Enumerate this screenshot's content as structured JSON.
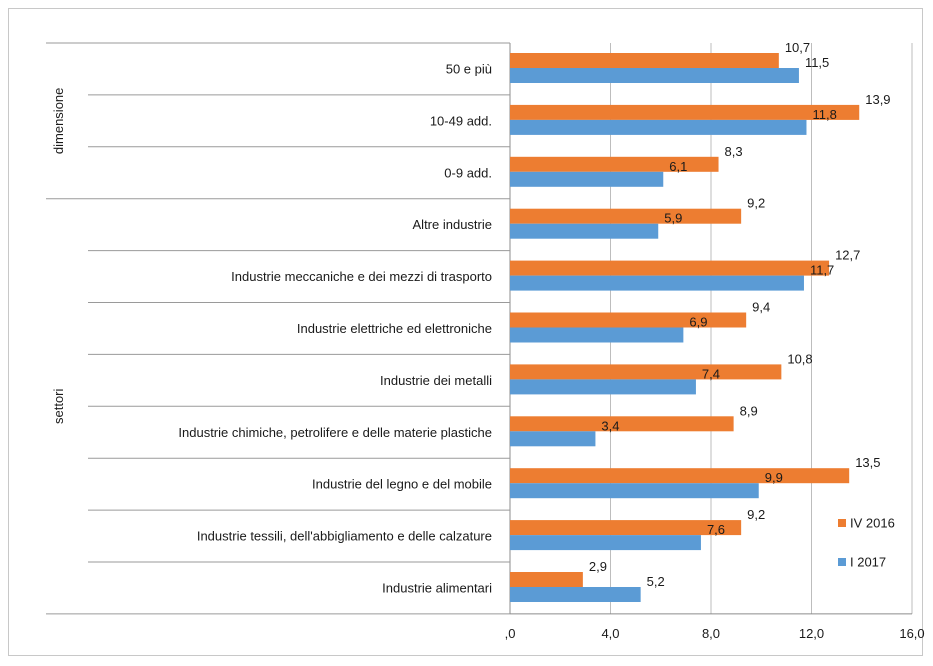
{
  "chart_data": {
    "type": "bar",
    "orientation": "horizontal",
    "groups": [
      {
        "label": "dimensione",
        "categories": [
          "50 e più",
          "10-49 add.",
          "0-9 add."
        ]
      },
      {
        "label": "settori",
        "categories": [
          "Altre industrie",
          "Industrie meccaniche e dei mezzi di trasporto",
          "Industrie elettriche ed elettroniche",
          "Industrie dei metalli",
          "Industrie chimiche, petrolifere e delle materie plastiche",
          "Industrie del legno e del mobile",
          "Industrie tessili, dell'abbigliamento e delle calzature",
          "Industrie alimentari"
        ]
      }
    ],
    "categories": [
      "50 e più",
      "10-49 add.",
      "0-9 add.",
      "Altre industrie",
      "Industrie meccaniche e dei mezzi di trasporto",
      "Industrie elettriche ed elettroniche",
      "Industrie dei metalli",
      "Industrie chimiche, petrolifere e delle materie plastiche",
      "Industrie del legno e del mobile",
      "Industrie tessili, dell'abbigliamento e delle calzature",
      "Industrie alimentari"
    ],
    "series": [
      {
        "name": "IV 2016",
        "color": "#ED7D31",
        "values": [
          10.7,
          13.9,
          8.3,
          9.2,
          12.7,
          9.4,
          10.8,
          8.9,
          13.5,
          9.2,
          2.9
        ],
        "labels": [
          "10,7",
          "13,9",
          "8,3",
          "9,2",
          "12,7",
          "9,4",
          "10,8",
          "8,9",
          "13,5",
          "9,2",
          "2,9"
        ]
      },
      {
        "name": "I 2017",
        "color": "#5B9BD5",
        "values": [
          11.5,
          11.8,
          6.1,
          5.9,
          11.7,
          6.9,
          7.4,
          3.4,
          9.9,
          7.6,
          5.2
        ],
        "labels": [
          "11,5",
          "11,8",
          "6,1",
          "5,9",
          "11,7",
          "6,9",
          "7,4",
          "3,4",
          "9,9",
          "7,6",
          "5,2"
        ]
      }
    ],
    "xlim": [
      0,
      16
    ],
    "xticks": [
      0,
      4,
      8,
      12,
      16
    ],
    "xtick_labels": [
      ",0",
      "4,0",
      "8,0",
      "12,0",
      "16,0"
    ],
    "grid": true,
    "legend": "right"
  }
}
